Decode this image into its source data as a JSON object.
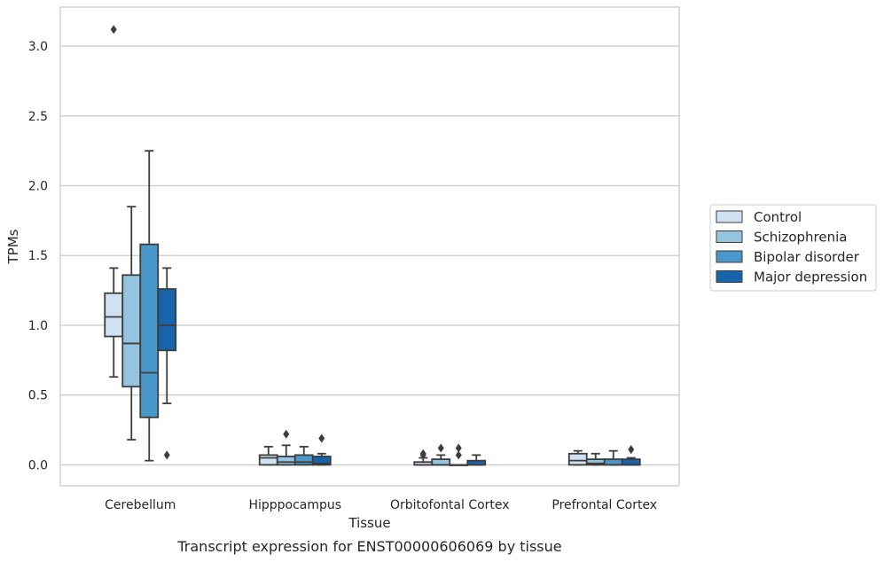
{
  "chart_data": {
    "type": "boxplot",
    "caption": "Transcript expression for ENST00000606069 by tissue",
    "xlabel": "Tissue",
    "ylabel": "TPMs",
    "ylim": [
      -0.15,
      3.28
    ],
    "yticks": [
      0.0,
      0.5,
      1.0,
      1.5,
      2.0,
      2.5,
      3.0
    ],
    "ytick_labels": [
      "0.0",
      "0.5",
      "1.0",
      "1.5",
      "2.0",
      "2.5",
      "3.0"
    ],
    "categories": [
      "Cerebellum",
      "Hipppocampus",
      "Orbitofontal Cortex",
      "Prefrontal Cortex"
    ],
    "grid": true,
    "legend_position": "right",
    "series": [
      {
        "name": "Control",
        "color": "#d0e1f2",
        "boxes": [
          {
            "whislo": 0.63,
            "q1": 0.92,
            "med": 1.06,
            "q3": 1.23,
            "whishi": 1.41,
            "fliers": [
              3.12
            ]
          },
          {
            "whislo": 0.0,
            "q1": 0.0,
            "med": 0.05,
            "q3": 0.07,
            "whishi": 0.13,
            "fliers": []
          },
          {
            "whislo": 0.0,
            "q1": 0.0,
            "med": 0.0,
            "q3": 0.02,
            "whishi": 0.05,
            "fliers": [
              0.07,
              0.08
            ]
          },
          {
            "whislo": 0.0,
            "q1": 0.0,
            "med": 0.03,
            "q3": 0.08,
            "whishi": 0.1,
            "fliers": []
          }
        ]
      },
      {
        "name": "Schizophrenia",
        "color": "#94c4df",
        "boxes": [
          {
            "whislo": 0.18,
            "q1": 0.56,
            "med": 0.87,
            "q3": 1.36,
            "whishi": 1.85,
            "fliers": []
          },
          {
            "whislo": 0.0,
            "q1": 0.0,
            "med": 0.02,
            "q3": 0.06,
            "whishi": 0.14,
            "fliers": [
              0.22
            ]
          },
          {
            "whislo": 0.0,
            "q1": 0.0,
            "med": 0.0,
            "q3": 0.04,
            "whishi": 0.07,
            "fliers": [
              0.12
            ]
          },
          {
            "whislo": 0.0,
            "q1": 0.0,
            "med": 0.01,
            "q3": 0.04,
            "whishi": 0.08,
            "fliers": []
          }
        ]
      },
      {
        "name": "Bipolar disorder",
        "color": "#4a98c9",
        "boxes": [
          {
            "whislo": 0.03,
            "q1": 0.34,
            "med": 0.66,
            "q3": 1.58,
            "whishi": 2.25,
            "fliers": []
          },
          {
            "whislo": 0.0,
            "q1": 0.0,
            "med": 0.02,
            "q3": 0.07,
            "whishi": 0.13,
            "fliers": []
          },
          {
            "whislo": 0.0,
            "q1": 0.0,
            "med": 0.0,
            "q3": 0.0,
            "whishi": 0.0,
            "fliers": [
              0.07,
              0.12
            ]
          },
          {
            "whislo": 0.0,
            "q1": 0.0,
            "med": 0.0,
            "q3": 0.04,
            "whishi": 0.1,
            "fliers": []
          }
        ]
      },
      {
        "name": "Major depression",
        "color": "#1764ab",
        "boxes": [
          {
            "whislo": 0.44,
            "q1": 0.82,
            "med": 1.0,
            "q3": 1.26,
            "whishi": 1.41,
            "fliers": [
              0.07
            ]
          },
          {
            "whislo": 0.0,
            "q1": 0.0,
            "med": 0.01,
            "q3": 0.06,
            "whishi": 0.08,
            "fliers": [
              0.19
            ]
          },
          {
            "whislo": 0.0,
            "q1": 0.0,
            "med": 0.0,
            "q3": 0.03,
            "whishi": 0.07,
            "fliers": []
          },
          {
            "whislo": 0.0,
            "q1": 0.0,
            "med": 0.0,
            "q3": 0.04,
            "whishi": 0.05,
            "fliers": [
              0.11
            ]
          }
        ]
      }
    ]
  }
}
